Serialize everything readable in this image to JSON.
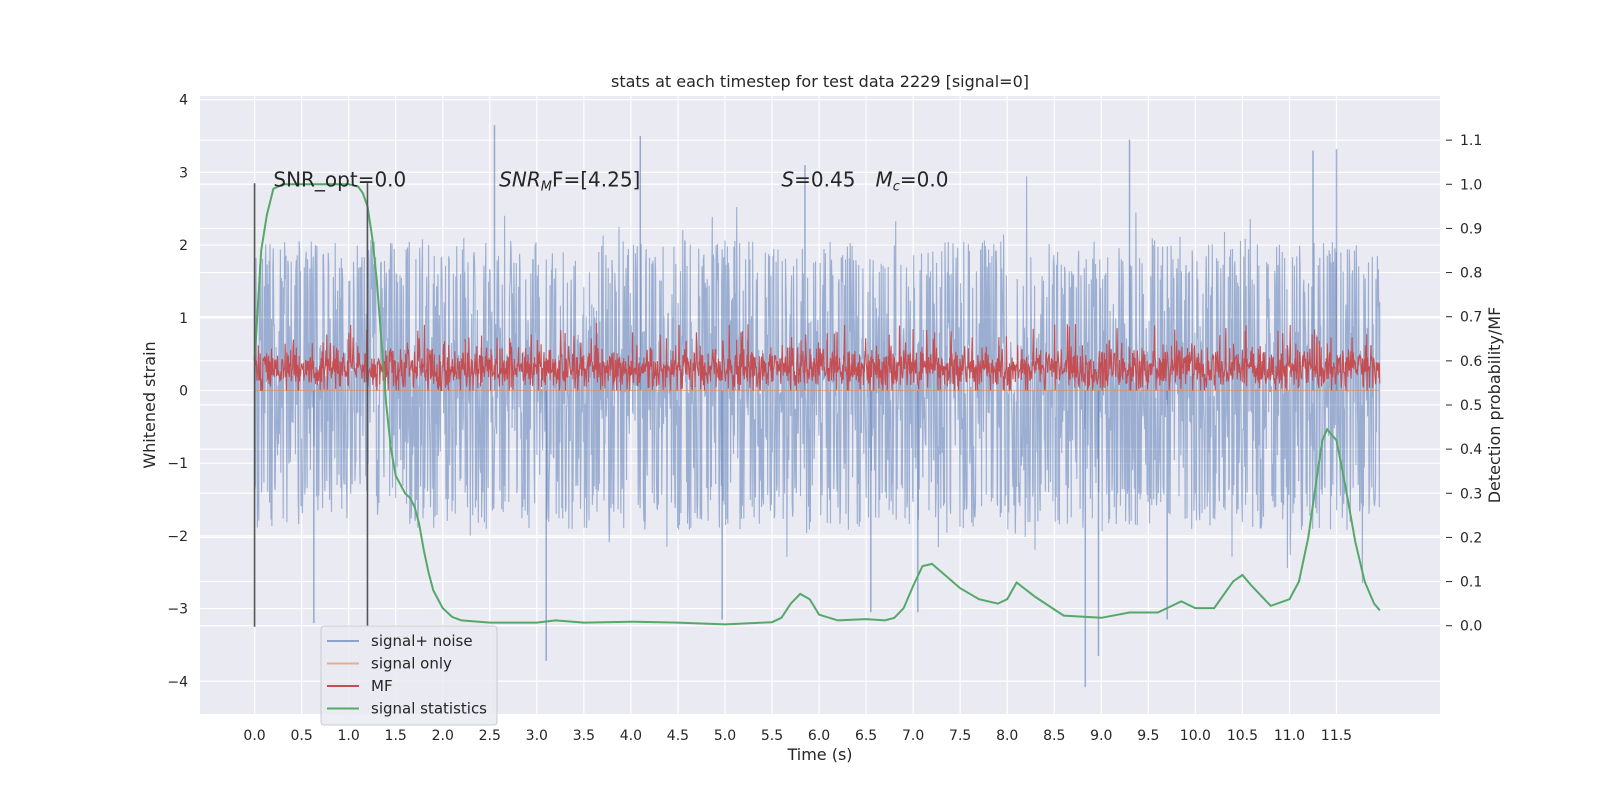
{
  "chart_data": {
    "type": "line",
    "title": "stats at each timestep for test data 2229 [signal=0]",
    "xlabel": "Time (s)",
    "ylabel": "Whitened strain",
    "ylabel_right": "Detection probability/MF",
    "xlim": [
      -0.58,
      12.6
    ],
    "ylim": [
      -4.45,
      4.05
    ],
    "ylim_right": [
      -0.2,
      1.2
    ],
    "x_ticks": [
      0.0,
      0.5,
      1.0,
      1.5,
      2.0,
      2.5,
      3.0,
      3.5,
      4.0,
      4.5,
      5.0,
      5.5,
      6.0,
      6.5,
      7.0,
      7.5,
      8.0,
      8.5,
      9.0,
      9.5,
      10.0,
      10.5,
      11.0,
      11.5
    ],
    "x_tick_labels": [
      "0.0",
      "0.5",
      "1.0",
      "1.5",
      "2.0",
      "2.5",
      "3.0",
      "3.5",
      "4.0",
      "4.5",
      "5.0",
      "5.5",
      "6.0",
      "6.5",
      "7.0",
      "7.5",
      "8.0",
      "8.5",
      "9.0",
      "9.5",
      "10.0",
      "10.5",
      "11.0",
      "11.5"
    ],
    "y_ticks": [
      -4,
      -3,
      -2,
      -1,
      0,
      1,
      2,
      3,
      4
    ],
    "y_tick_labels": [
      "−4",
      "−3",
      "−2",
      "−1",
      "0",
      "1",
      "2",
      "3",
      "4"
    ],
    "y_right_ticks": [
      0.0,
      0.1,
      0.2,
      0.3,
      0.4,
      0.5,
      0.6,
      0.7,
      0.8,
      0.9,
      1.0,
      1.1
    ],
    "y_right_tick_labels": [
      "0.0",
      "0.1",
      "0.2",
      "0.3",
      "0.4",
      "0.5",
      "0.6",
      "0.7",
      "0.8",
      "0.9",
      "1.0",
      "1.1"
    ],
    "grid": true,
    "vlines": [
      0.0,
      1.2
    ],
    "vline_range": [
      -3.25,
      2.85
    ],
    "annotations": [
      {
        "text": "SNR_opt=0.0",
        "x": 0.2,
        "y": 2.9
      },
      {
        "prefix": "SNR",
        "sub": "M",
        "suffix": "F=[4.25]",
        "x": 2.6,
        "y": 2.9
      },
      {
        "prefix": "S",
        "suffix": "=0.45",
        "x": 5.6,
        "y": 2.9
      },
      {
        "prefix": "M",
        "sub": "c",
        "suffix": "=0.0",
        "x": 6.6,
        "y": 2.9
      }
    ],
    "legend_position": "lower-left",
    "series": [
      {
        "name": "signal+ noise",
        "color": "#4c72b0",
        "axis": "left",
        "x_range": [
          0.0,
          11.96
        ],
        "envelope": {
          "typical": [
            -1.4,
            1.55
          ],
          "extreme": [
            -4.08,
            3.7
          ]
        },
        "spikes": [
          [
            0.63,
            -3.2
          ],
          [
            2.55,
            3.65
          ],
          [
            3.1,
            -3.72
          ],
          [
            4.1,
            3.5
          ],
          [
            4.97,
            -3.15
          ],
          [
            8.83,
            -4.08
          ],
          [
            8.97,
            -3.65
          ],
          [
            9.3,
            3.45
          ],
          [
            11.25,
            3.3
          ],
          [
            11.5,
            3.32
          ],
          [
            5.85,
            3.1
          ],
          [
            6.55,
            -3.05
          ],
          [
            7.05,
            -3.05
          ],
          [
            9.7,
            -3.15
          ]
        ]
      },
      {
        "name": "signal only",
        "color": "#dd8452",
        "axis": "left",
        "x_range": [
          0.0,
          11.96
        ],
        "values_constant": 0.0
      },
      {
        "name": "MF",
        "color": "#c44e52",
        "axis": "left",
        "x_range": [
          0.0,
          11.96
        ],
        "band": [
          0.0,
          1.0
        ],
        "typical": [
          0.1,
          0.5
        ]
      },
      {
        "name": "signal statistics",
        "color": "#55a868",
        "axis": "right",
        "x": [
          0.0,
          0.07,
          0.13,
          0.2,
          0.3,
          0.5,
          0.9,
          1.0,
          1.1,
          1.15,
          1.2,
          1.25,
          1.3,
          1.35,
          1.4,
          1.45,
          1.5,
          1.55,
          1.6,
          1.65,
          1.7,
          1.75,
          1.8,
          1.85,
          1.9,
          2.0,
          2.1,
          2.2,
          2.5,
          3.0,
          3.2,
          3.5,
          4.0,
          4.5,
          5.0,
          5.5,
          5.6,
          5.7,
          5.8,
          5.9,
          6.0,
          6.2,
          6.5,
          6.7,
          6.8,
          6.9,
          7.0,
          7.1,
          7.2,
          7.5,
          7.7,
          7.9,
          8.0,
          8.1,
          8.3,
          8.6,
          9.0,
          9.3,
          9.6,
          9.85,
          10.0,
          10.2,
          10.4,
          10.5,
          10.6,
          10.8,
          11.0,
          11.1,
          11.2,
          11.3,
          11.35,
          11.4,
          11.5,
          11.6,
          11.7,
          11.8,
          11.9,
          11.96
        ],
        "values": [
          0.6,
          0.85,
          0.93,
          0.99,
          1.0,
          1.0,
          1.0,
          1.0,
          0.995,
          0.98,
          0.95,
          0.88,
          0.78,
          0.64,
          0.5,
          0.4,
          0.34,
          0.32,
          0.3,
          0.29,
          0.27,
          0.23,
          0.17,
          0.12,
          0.08,
          0.04,
          0.02,
          0.012,
          0.007,
          0.007,
          0.012,
          0.007,
          0.009,
          0.007,
          0.003,
          0.008,
          0.018,
          0.05,
          0.072,
          0.06,
          0.025,
          0.012,
          0.015,
          0.012,
          0.018,
          0.04,
          0.09,
          0.135,
          0.14,
          0.085,
          0.06,
          0.05,
          0.06,
          0.098,
          0.065,
          0.023,
          0.018,
          0.03,
          0.03,
          0.055,
          0.04,
          0.04,
          0.1,
          0.115,
          0.09,
          0.045,
          0.06,
          0.1,
          0.2,
          0.35,
          0.42,
          0.445,
          0.42,
          0.31,
          0.19,
          0.1,
          0.05,
          0.035
        ]
      }
    ]
  }
}
